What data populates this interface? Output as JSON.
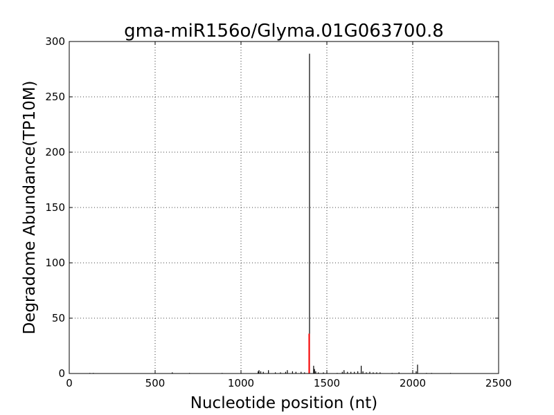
{
  "chart_data": {
    "type": "bar",
    "title": "gma-miR156o/Glyma.01G063700.8",
    "xlabel": "Nucleotide position (nt)",
    "ylabel": "Degradome Abundance(TP10M)",
    "xlim": [
      0,
      2500
    ],
    "ylim": [
      0,
      300
    ],
    "xticks": [
      0,
      500,
      1000,
      1500,
      2000,
      2500
    ],
    "yticks": [
      0,
      50,
      100,
      150,
      200,
      250,
      300
    ],
    "grid": true,
    "colors": {
      "background": "#000000",
      "target": "#ff0000"
    },
    "series": [
      {
        "color": "#000000",
        "points": [
          [
            120,
            0.5
          ],
          [
            140,
            0.5
          ],
          [
            600,
            1
          ],
          [
            700,
            0.5
          ],
          [
            890,
            0.5
          ],
          [
            1000,
            0.5
          ],
          [
            1100,
            2
          ],
          [
            1105,
            3
          ],
          [
            1115,
            2
          ],
          [
            1130,
            1.5
          ],
          [
            1160,
            3
          ],
          [
            1200,
            1
          ],
          [
            1230,
            1
          ],
          [
            1260,
            1.5
          ],
          [
            1270,
            3
          ],
          [
            1300,
            2
          ],
          [
            1320,
            1.5
          ],
          [
            1350,
            1.5
          ],
          [
            1370,
            1
          ],
          [
            1399,
            289
          ],
          [
            1423,
            7
          ],
          [
            1428,
            4
          ],
          [
            1435,
            2
          ],
          [
            1450,
            1
          ],
          [
            1480,
            1
          ],
          [
            1500,
            1
          ],
          [
            1560,
            0.5
          ],
          [
            1590,
            1.5
          ],
          [
            1600,
            3
          ],
          [
            1620,
            1.5
          ],
          [
            1640,
            1.5
          ],
          [
            1660,
            1.5
          ],
          [
            1680,
            2
          ],
          [
            1700,
            7
          ],
          [
            1710,
            2
          ],
          [
            1730,
            1
          ],
          [
            1750,
            1.5
          ],
          [
            1770,
            1
          ],
          [
            1790,
            1
          ],
          [
            1810,
            1
          ],
          [
            1880,
            0.5
          ],
          [
            1920,
            1
          ],
          [
            2020,
            2
          ],
          [
            2028,
            8
          ],
          [
            2080,
            0.5
          ],
          [
            2110,
            0.5
          ],
          [
            2220,
            0.5
          ]
        ]
      },
      {
        "color": "#ff0000",
        "points": [
          [
            1397,
            36
          ]
        ]
      }
    ]
  }
}
